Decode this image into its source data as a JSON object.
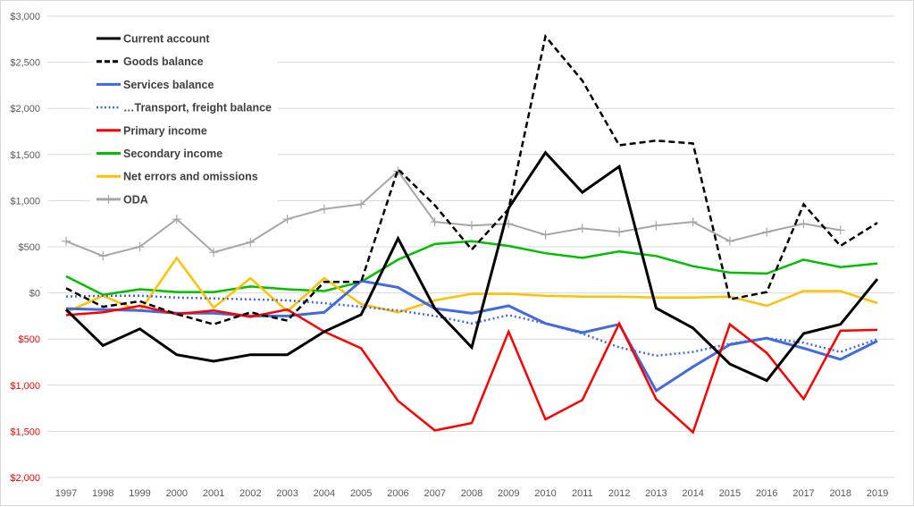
{
  "chart_data": {
    "type": "line",
    "title": "",
    "xlabel": "",
    "ylabel": "",
    "ylim": [
      -2000,
      3000
    ],
    "yticks": [
      3000,
      2500,
      2000,
      1500,
      1000,
      500,
      0,
      -500,
      -1000,
      -1500,
      -2000
    ],
    "ytick_labels": [
      "$3,000",
      "$2,500",
      "$2,000",
      "$1,500",
      "$1,000",
      "$500",
      "$0",
      "$500",
      "$1,000",
      "$1,500",
      "$2,000"
    ],
    "negative_tick_color": "#ff0000",
    "grid": true,
    "legend_position": "top-left",
    "x": [
      "1997",
      "1998",
      "1999",
      "2000",
      "2001",
      "2002",
      "2003",
      "2004",
      "2005",
      "2006",
      "2007",
      "2008",
      "2009",
      "2010",
      "2011",
      "2012",
      "2013",
      "2014",
      "2015",
      "2016",
      "2017",
      "2018",
      "2019"
    ],
    "series": [
      {
        "name": "Current account",
        "color": "#000000",
        "style": "solid",
        "values": [
          -180,
          -570,
          -390,
          -670,
          -740,
          -670,
          -670,
          -420,
          -235,
          590,
          -170,
          -590,
          920,
          1520,
          1090,
          1370,
          -165,
          -380,
          -770,
          -950,
          -440,
          -340,
          150
        ]
      },
      {
        "name": "Goods balance",
        "color": "#000000",
        "style": "dashed",
        "values": [
          50,
          -150,
          -90,
          -230,
          -340,
          -210,
          -300,
          120,
          120,
          1340,
          950,
          470,
          910,
          2780,
          2300,
          1600,
          1650,
          1620,
          -70,
          10,
          960,
          510,
          760
        ]
      },
      {
        "name": "Services balance",
        "color": "#4169e1",
        "style": "solid",
        "values": [
          -170,
          -180,
          -190,
          -220,
          -220,
          -250,
          -250,
          -210,
          130,
          60,
          -170,
          -220,
          -140,
          -330,
          -430,
          -340,
          -1060,
          -800,
          -560,
          -490,
          -600,
          -720,
          -520
        ]
      },
      {
        "name": "…Transport, freight balance",
        "color": "#4169e1",
        "style": "dotted",
        "values": [
          -40,
          -30,
          -30,
          -50,
          -60,
          -70,
          -80,
          -110,
          -150,
          -190,
          -250,
          -330,
          -240,
          -330,
          -440,
          -590,
          -680,
          -640,
          -550,
          -490,
          -540,
          -640,
          -500
        ]
      },
      {
        "name": "Primary income",
        "color": "#ff0000",
        "style": "solid",
        "values": [
          -240,
          -210,
          -140,
          -230,
          -190,
          -260,
          -180,
          -420,
          -600,
          -1170,
          -1490,
          -1410,
          -420,
          -1370,
          -1160,
          -330,
          -1150,
          -1510,
          -340,
          -650,
          -1150,
          -410,
          -400
        ]
      },
      {
        "name": "Secondary income",
        "color": "#00c000",
        "style": "solid",
        "values": [
          180,
          -20,
          40,
          10,
          10,
          70,
          40,
          20,
          120,
          360,
          530,
          560,
          510,
          430,
          380,
          450,
          400,
          290,
          220,
          210,
          360,
          280,
          320
        ]
      },
      {
        "name": "Net errors and omissions",
        "color": "#ffc000",
        "style": "solid",
        "values": [
          -210,
          -30,
          -200,
          380,
          -160,
          160,
          -200,
          160,
          -120,
          -210,
          -80,
          -10,
          -10,
          -30,
          -40,
          -40,
          -50,
          -50,
          -40,
          -140,
          20,
          20,
          -110
        ]
      },
      {
        "name": "ODA",
        "color": "#a6a6a6",
        "style": "solid-marker-plus",
        "values": [
          560,
          400,
          500,
          800,
          440,
          550,
          800,
          910,
          960,
          1320,
          770,
          730,
          750,
          630,
          700,
          660,
          730,
          770,
          560,
          660,
          750,
          680,
          null
        ]
      }
    ]
  }
}
